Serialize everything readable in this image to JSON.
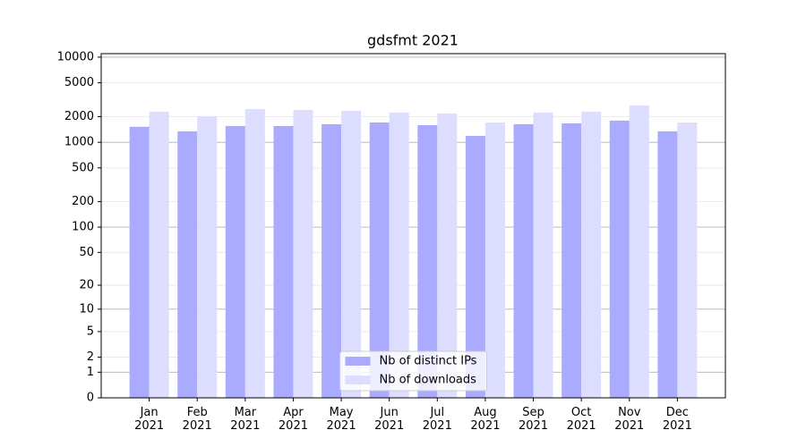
{
  "chart_data": {
    "type": "bar",
    "title": "gdsfmt 2021",
    "categories": [
      "Jan 2021",
      "Feb 2021",
      "Mar 2021",
      "Apr 2021",
      "May 2021",
      "Jun 2021",
      "Jul 2021",
      "Aug 2021",
      "Sep 2021",
      "Oct 2021",
      "Nov 2021",
      "Dec 2021"
    ],
    "series": [
      {
        "name": "Nb of distinct IPs",
        "color": "#aaaaff",
        "values": [
          1520,
          1345,
          1555,
          1555,
          1630,
          1710,
          1590,
          1190,
          1630,
          1670,
          1800,
          1345
        ]
      },
      {
        "name": "Nb of downloads",
        "color": "#ddddff",
        "values": [
          2290,
          2030,
          2460,
          2400,
          2345,
          2235,
          2180,
          1710,
          2235,
          2290,
          2710,
          1710
        ]
      }
    ],
    "yscale": "log1p",
    "ylim": [
      0,
      11000
    ],
    "yticks": [
      0,
      1,
      2,
      5,
      10,
      20,
      50,
      100,
      200,
      500,
      1000,
      2000,
      5000,
      10000
    ],
    "grid": true,
    "legend": "lower center"
  }
}
